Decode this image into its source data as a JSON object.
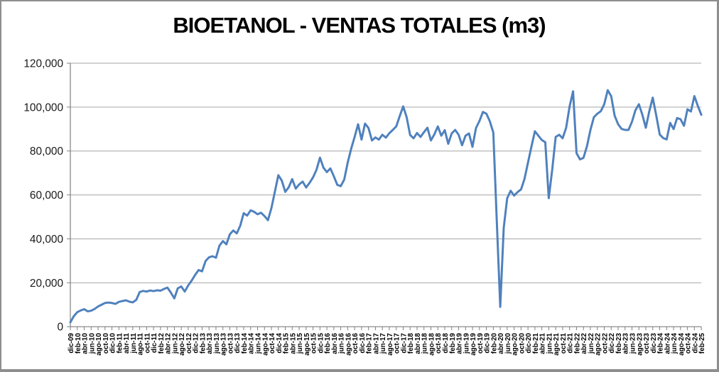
{
  "frame": {
    "background": "#FFFFFF",
    "border_color": "#8E8E8E"
  },
  "chart_data": {
    "type": "line",
    "title": "BIOETANOL - VENTAS TOTALES (m3)",
    "xlabel": "",
    "ylabel": "",
    "x_start": "dic-09",
    "x_end": "feb-25",
    "x_interval": "monthly",
    "x_tick_every_n_months": 2,
    "x_tick_labels": [
      "dic-09",
      "feb-10",
      "abr-10",
      "jun-10",
      "ago-10",
      "oct-10",
      "dic-10",
      "feb-11",
      "abr-11",
      "jun-11",
      "ago-11",
      "oct-11",
      "dic-11",
      "feb-12",
      "abr-12",
      "jun-12",
      "ago-12",
      "oct-12",
      "dic-12",
      "feb-13",
      "abr-13",
      "jun-13",
      "ago-13",
      "oct-13",
      "dic-13",
      "feb-14",
      "abr-14",
      "jun-14",
      "ago-14",
      "oct-14",
      "dic-14",
      "feb-15",
      "abr-15",
      "jun-15",
      "ago-15",
      "oct-15",
      "dic-15",
      "feb-16",
      "abr-16",
      "jun-16",
      "ago-16",
      "oct-16",
      "dic-16",
      "feb-17",
      "abr-17",
      "jun-17",
      "ago-17",
      "oct-17",
      "dic-17",
      "feb-18",
      "abr-18",
      "jun-18",
      "ago-18",
      "oct-18",
      "dic-18",
      "feb-19",
      "abr-19",
      "jun-19",
      "ago-19",
      "oct-19",
      "dic-19",
      "feb-20",
      "abr-20",
      "jun-20",
      "ago-20",
      "oct-20",
      "dic-20",
      "feb-21",
      "abr-21",
      "jun-21",
      "ago-21",
      "oct-21",
      "dic-21",
      "feb-22",
      "abr-22",
      "jun-22",
      "ago-22",
      "oct-22",
      "dic-22",
      "feb-23",
      "abr-23",
      "jun-23",
      "ago-23",
      "oct-23",
      "dic-23",
      "feb-24",
      "abr-24",
      "jun-24",
      "ago-24",
      "oct-24",
      "dic-24",
      "feb-25"
    ],
    "ylim": [
      0,
      120000
    ],
    "yticks": [
      0,
      20000,
      40000,
      60000,
      80000,
      100000,
      120000
    ],
    "ytick_labels": [
      "0",
      "20,000",
      "40,000",
      "60,000",
      "80,000",
      "100,000",
      "120,000"
    ],
    "grid": "horizontal",
    "legend": "none",
    "series": [
      {
        "name": "VENTAS TOTALES (m3)",
        "color": "#4F81BD",
        "values": [
          2000,
          4800,
          6600,
          7400,
          8000,
          7000,
          7300,
          8100,
          9200,
          10000,
          10800,
          11000,
          10800,
          10400,
          11300,
          11700,
          12000,
          11400,
          11100,
          12200,
          15800,
          16300,
          16000,
          16500,
          16200,
          16600,
          16400,
          17200,
          17800,
          15500,
          12900,
          17500,
          18300,
          16000,
          18800,
          21000,
          23600,
          25800,
          25200,
          29900,
          31600,
          32100,
          31400,
          36900,
          39000,
          37500,
          42100,
          43800,
          42500,
          46000,
          51700,
          50600,
          53000,
          52300,
          51200,
          51900,
          50400,
          48500,
          54000,
          61500,
          69000,
          66500,
          61400,
          63500,
          67200,
          62900,
          64800,
          66100,
          63400,
          65500,
          68000,
          71500,
          77000,
          72400,
          70400,
          72100,
          68500,
          64600,
          64000,
          67000,
          74700,
          81000,
          86400,
          92200,
          85200,
          92500,
          90500,
          84800,
          86200,
          85200,
          87400,
          86100,
          88100,
          89600,
          91200,
          95900,
          100300,
          95400,
          87300,
          85800,
          88200,
          86400,
          88600,
          90600,
          84800,
          87600,
          91200,
          87000,
          89500,
          83300,
          88000,
          89600,
          87400,
          82600,
          87000,
          88000,
          81900,
          90500,
          93700,
          97800,
          97000,
          93500,
          88400,
          48000,
          9000,
          45000,
          58500,
          61900,
          59700,
          61300,
          62500,
          67300,
          74700,
          82000,
          89000,
          87000,
          85000,
          84000,
          58500,
          71500,
          86400,
          87400,
          85800,
          90600,
          100300,
          107200,
          79000,
          76200,
          76900,
          82100,
          89500,
          95400,
          97000,
          98100,
          101300,
          107700,
          105000,
          96100,
          92200,
          90100,
          89600,
          89600,
          93300,
          98600,
          101300,
          96500,
          90600,
          98100,
          104300,
          96100,
          87500,
          85900,
          85300,
          92800,
          90000,
          95000,
          94500,
          91500,
          99000,
          98000,
          105000,
          100500,
          96500
        ]
      }
    ],
    "style": {
      "line_color": "#4F81BD",
      "line_width": 3,
      "gridline_color": "#A6A6A6",
      "axis_color": "#7F7F7F",
      "text_color": "#000000"
    }
  }
}
